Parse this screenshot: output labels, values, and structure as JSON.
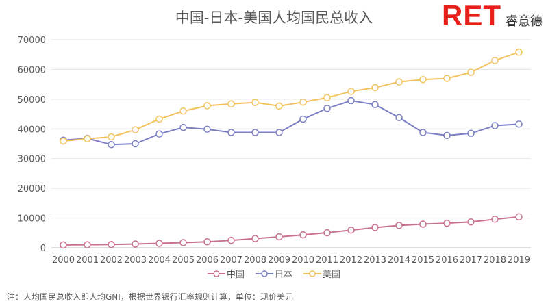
{
  "brand": {
    "mark": "RET",
    "text": "睿意德"
  },
  "note": "注：人均国民总收入即人均GNI，根据世界银行汇率规则计算，单位：现价美元",
  "chart_data": {
    "type": "line",
    "title": "中国-日本-美国人均国民总收入",
    "categories": [
      "2000",
      "2001",
      "2002",
      "2003",
      "2004",
      "2005",
      "2006",
      "2007",
      "2008",
      "2009",
      "2010",
      "2011",
      "2012",
      "2013",
      "2014",
      "2015",
      "2016",
      "2017",
      "2018",
      "2019"
    ],
    "ylim": [
      0,
      70000
    ],
    "yticks": [
      0,
      10000,
      20000,
      30000,
      40000,
      50000,
      60000,
      70000
    ],
    "grid": true,
    "legend_position": "bottom",
    "series": [
      {
        "name": "中国",
        "color": "#c9708a",
        "values": [
          940,
          1000,
          1100,
          1270,
          1500,
          1740,
          2010,
          2490,
          3100,
          3690,
          4340,
          5060,
          5940,
          6800,
          7520,
          7950,
          8250,
          8690,
          9600,
          10410
        ]
      },
      {
        "name": "日本",
        "color": "#7b7fc4",
        "values": [
          36200,
          36800,
          34700,
          35000,
          38300,
          40500,
          39900,
          38800,
          38800,
          38800,
          43300,
          46900,
          49500,
          48200,
          43800,
          38800,
          37800,
          38500,
          41100,
          41600
        ]
      },
      {
        "name": "美国",
        "color": "#f2c25e",
        "values": [
          35900,
          36700,
          37300,
          39700,
          43300,
          46000,
          47800,
          48400,
          48900,
          47700,
          49000,
          50500,
          52600,
          53900,
          55800,
          56600,
          57000,
          59000,
          63000,
          65800
        ]
      }
    ]
  }
}
